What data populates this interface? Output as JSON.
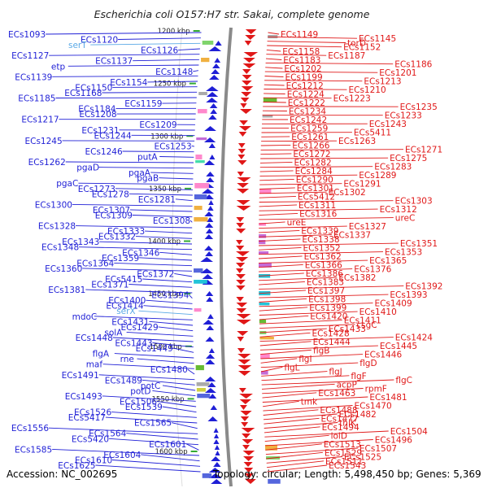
{
  "title": "Escherichia coli O157:H7 str. Sakai, complete genome",
  "footer": {
    "accession": "Accession: NC_002695",
    "stats": "Topology: circular; Length: 5,498,450 bp; Genes: 5,369"
  },
  "colors": {
    "left_strand": "#1f1fd6",
    "right_strand": "#e01818",
    "rna": "#5aa9e6",
    "backbone": "#8a8a8a"
  },
  "kbp_ticks": [
    "1200 kbp",
    "1250 kbp",
    "1300 kbp",
    "1350 kbp",
    "1400 kbp",
    "1450 kbp",
    "1500 kbp",
    "1550 kbp",
    "1600 kbp"
  ],
  "left_labels": [
    {
      "text": "ECs1093"
    },
    {
      "text": "ECs1120"
    },
    {
      "text": "serT",
      "rna": true
    },
    {
      "text": "ECs1126"
    },
    {
      "text": "ECs1127"
    },
    {
      "text": "ECs1137"
    },
    {
      "text": "etp"
    },
    {
      "text": "ECs1148"
    },
    {
      "text": "ECs1139"
    },
    {
      "text": "ECs1154"
    },
    {
      "text": "ECs1150"
    },
    {
      "text": "ECs1168"
    },
    {
      "text": "ECs1185"
    },
    {
      "text": "ECs1159"
    },
    {
      "text": "ECs1184"
    },
    {
      "text": "ECs1208"
    },
    {
      "text": "ECs1217"
    },
    {
      "text": "ECs1209"
    },
    {
      "text": "ECs1231"
    },
    {
      "text": "ECs1244"
    },
    {
      "text": "ECs1245"
    },
    {
      "text": "ECs1253"
    },
    {
      "text": "ECs1246"
    },
    {
      "text": "putA"
    },
    {
      "text": "ECs1262"
    },
    {
      "text": "pgaD"
    },
    {
      "text": "pgaA"
    },
    {
      "text": "pgaB"
    },
    {
      "text": "pgaC"
    },
    {
      "text": "ECs1273"
    },
    {
      "text": "ECs1278"
    },
    {
      "text": "ECs1281"
    },
    {
      "text": "ECs1300"
    },
    {
      "text": "ECs1307"
    },
    {
      "text": "ECs1309"
    },
    {
      "text": "ECs1308"
    },
    {
      "text": "ECs1328"
    },
    {
      "text": "ECs1333"
    },
    {
      "text": "ECs1332"
    },
    {
      "text": "ECs1343"
    },
    {
      "text": "ECs1348"
    },
    {
      "text": "ECs1346"
    },
    {
      "text": "ECs1359"
    },
    {
      "text": "ECs1364"
    },
    {
      "text": "ECs1360"
    },
    {
      "text": "ECs1372"
    },
    {
      "text": "ECs5415"
    },
    {
      "text": "ECs1371"
    },
    {
      "text": "ECs1381"
    },
    {
      "text": "ECs1394"
    },
    {
      "text": "ECs1400"
    },
    {
      "text": "ECs1414"
    },
    {
      "text": "serX",
      "rna": true
    },
    {
      "text": "mdoC"
    },
    {
      "text": "ECs1431"
    },
    {
      "text": "ECs1429"
    },
    {
      "text": "solA"
    },
    {
      "text": "ECs1448"
    },
    {
      "text": "ECs1443"
    },
    {
      "text": "ECs1449"
    },
    {
      "text": "flgA"
    },
    {
      "text": "rne"
    },
    {
      "text": "maf"
    },
    {
      "text": "ECs1480"
    },
    {
      "text": "ECs1491"
    },
    {
      "text": "ECs1489"
    },
    {
      "text": "potC"
    },
    {
      "text": "potD"
    },
    {
      "text": "ECs1493"
    },
    {
      "text": "ECs1506"
    },
    {
      "text": "ECs1539"
    },
    {
      "text": "ECs1526"
    },
    {
      "text": "ECs5417"
    },
    {
      "text": "ECs1565"
    },
    {
      "text": "ECs1556"
    },
    {
      "text": "ECs1564"
    },
    {
      "text": "ECs5420"
    },
    {
      "text": "ECs1601"
    },
    {
      "text": "ECs1585"
    },
    {
      "text": "ECs1604"
    },
    {
      "text": "ECs1610"
    },
    {
      "text": "ECs1625"
    }
  ],
  "right_labels": [
    {
      "text": "ECs1149"
    },
    {
      "text": "ECs1145"
    },
    {
      "text": "torD"
    },
    {
      "text": "ECs1152"
    },
    {
      "text": "ECs1158"
    },
    {
      "text": "ECs1187"
    },
    {
      "text": "ECs1183"
    },
    {
      "text": "ECs1186"
    },
    {
      "text": "ECs1202"
    },
    {
      "text": "ECs1201"
    },
    {
      "text": "ECs1199"
    },
    {
      "text": "ECs1213"
    },
    {
      "text": "ECs1212"
    },
    {
      "text": "ECs1210"
    },
    {
      "text": "ECs1224"
    },
    {
      "text": "ECs1223"
    },
    {
      "text": "ECs1222"
    },
    {
      "text": "ECs1235"
    },
    {
      "text": "ECs1234"
    },
    {
      "text": "ECs1233"
    },
    {
      "text": "ECs1242"
    },
    {
      "text": "ECs1243"
    },
    {
      "text": "ECs1259"
    },
    {
      "text": "ECs5411"
    },
    {
      "text": "ECs1261"
    },
    {
      "text": "ECs1263"
    },
    {
      "text": "ECs1266"
    },
    {
      "text": "ECs1271"
    },
    {
      "text": "ECs1272"
    },
    {
      "text": "ECs1275"
    },
    {
      "text": "ECs1282"
    },
    {
      "text": "ECs1283"
    },
    {
      "text": "ECs1284"
    },
    {
      "text": "ECs1289"
    },
    {
      "text": "ECs1290"
    },
    {
      "text": "ECs1291"
    },
    {
      "text": "ECs1301"
    },
    {
      "text": "ECs1302"
    },
    {
      "text": "ECs5412"
    },
    {
      "text": "ECs1303"
    },
    {
      "text": "ECs1311"
    },
    {
      "text": "ECs1312"
    },
    {
      "text": "ECs1316"
    },
    {
      "text": "ureC"
    },
    {
      "text": "ureE"
    },
    {
      "text": "ECs1327"
    },
    {
      "text": "ECs1339"
    },
    {
      "text": "ECs1337"
    },
    {
      "text": "ECs1338"
    },
    {
      "text": "ECs1351"
    },
    {
      "text": "ECs1352"
    },
    {
      "text": "ECs1353"
    },
    {
      "text": "ECs1362"
    },
    {
      "text": "ECs1365"
    },
    {
      "text": "ECs1366"
    },
    {
      "text": "ECs1376"
    },
    {
      "text": "ECs1386"
    },
    {
      "text": "ECs1382"
    },
    {
      "text": "ECs1383"
    },
    {
      "text": "ECs1392"
    },
    {
      "text": "ECs1397"
    },
    {
      "text": "ECs1393"
    },
    {
      "text": "ECs1398"
    },
    {
      "text": "ECs1409"
    },
    {
      "text": "ECs1399"
    },
    {
      "text": "ECs1410"
    },
    {
      "text": "ECs1420"
    },
    {
      "text": "ECs1411"
    },
    {
      "text": "csgC"
    },
    {
      "text": "ECs1433"
    },
    {
      "text": "ECs1428"
    },
    {
      "text": "ECs1424"
    },
    {
      "text": "ECs1444"
    },
    {
      "text": "ECs1445"
    },
    {
      "text": "flgB"
    },
    {
      "text": "ECs1446"
    },
    {
      "text": "flgI"
    },
    {
      "text": "flgD"
    },
    {
      "text": "flgL"
    },
    {
      "text": "flgJ"
    },
    {
      "text": "flgF"
    },
    {
      "text": "flgC"
    },
    {
      "text": "acpP"
    },
    {
      "text": "rpmF"
    },
    {
      "text": "ECs1463"
    },
    {
      "text": "ECs1481"
    },
    {
      "text": "tmk"
    },
    {
      "text": "ECs1470"
    },
    {
      "text": "ECs1488"
    },
    {
      "text": "ECs1482"
    },
    {
      "text": "ECs1477"
    },
    {
      "text": "thiK"
    },
    {
      "text": "ECs1494"
    },
    {
      "text": "ECs1504"
    },
    {
      "text": "lolD"
    },
    {
      "text": "ECs1496"
    },
    {
      "text": "ECs1513"
    },
    {
      "text": "ECs1507"
    },
    {
      "text": "ECs1529"
    },
    {
      "text": "ECs1525"
    },
    {
      "text": "ECs1511"
    },
    {
      "text": "ECs1543"
    }
  ]
}
